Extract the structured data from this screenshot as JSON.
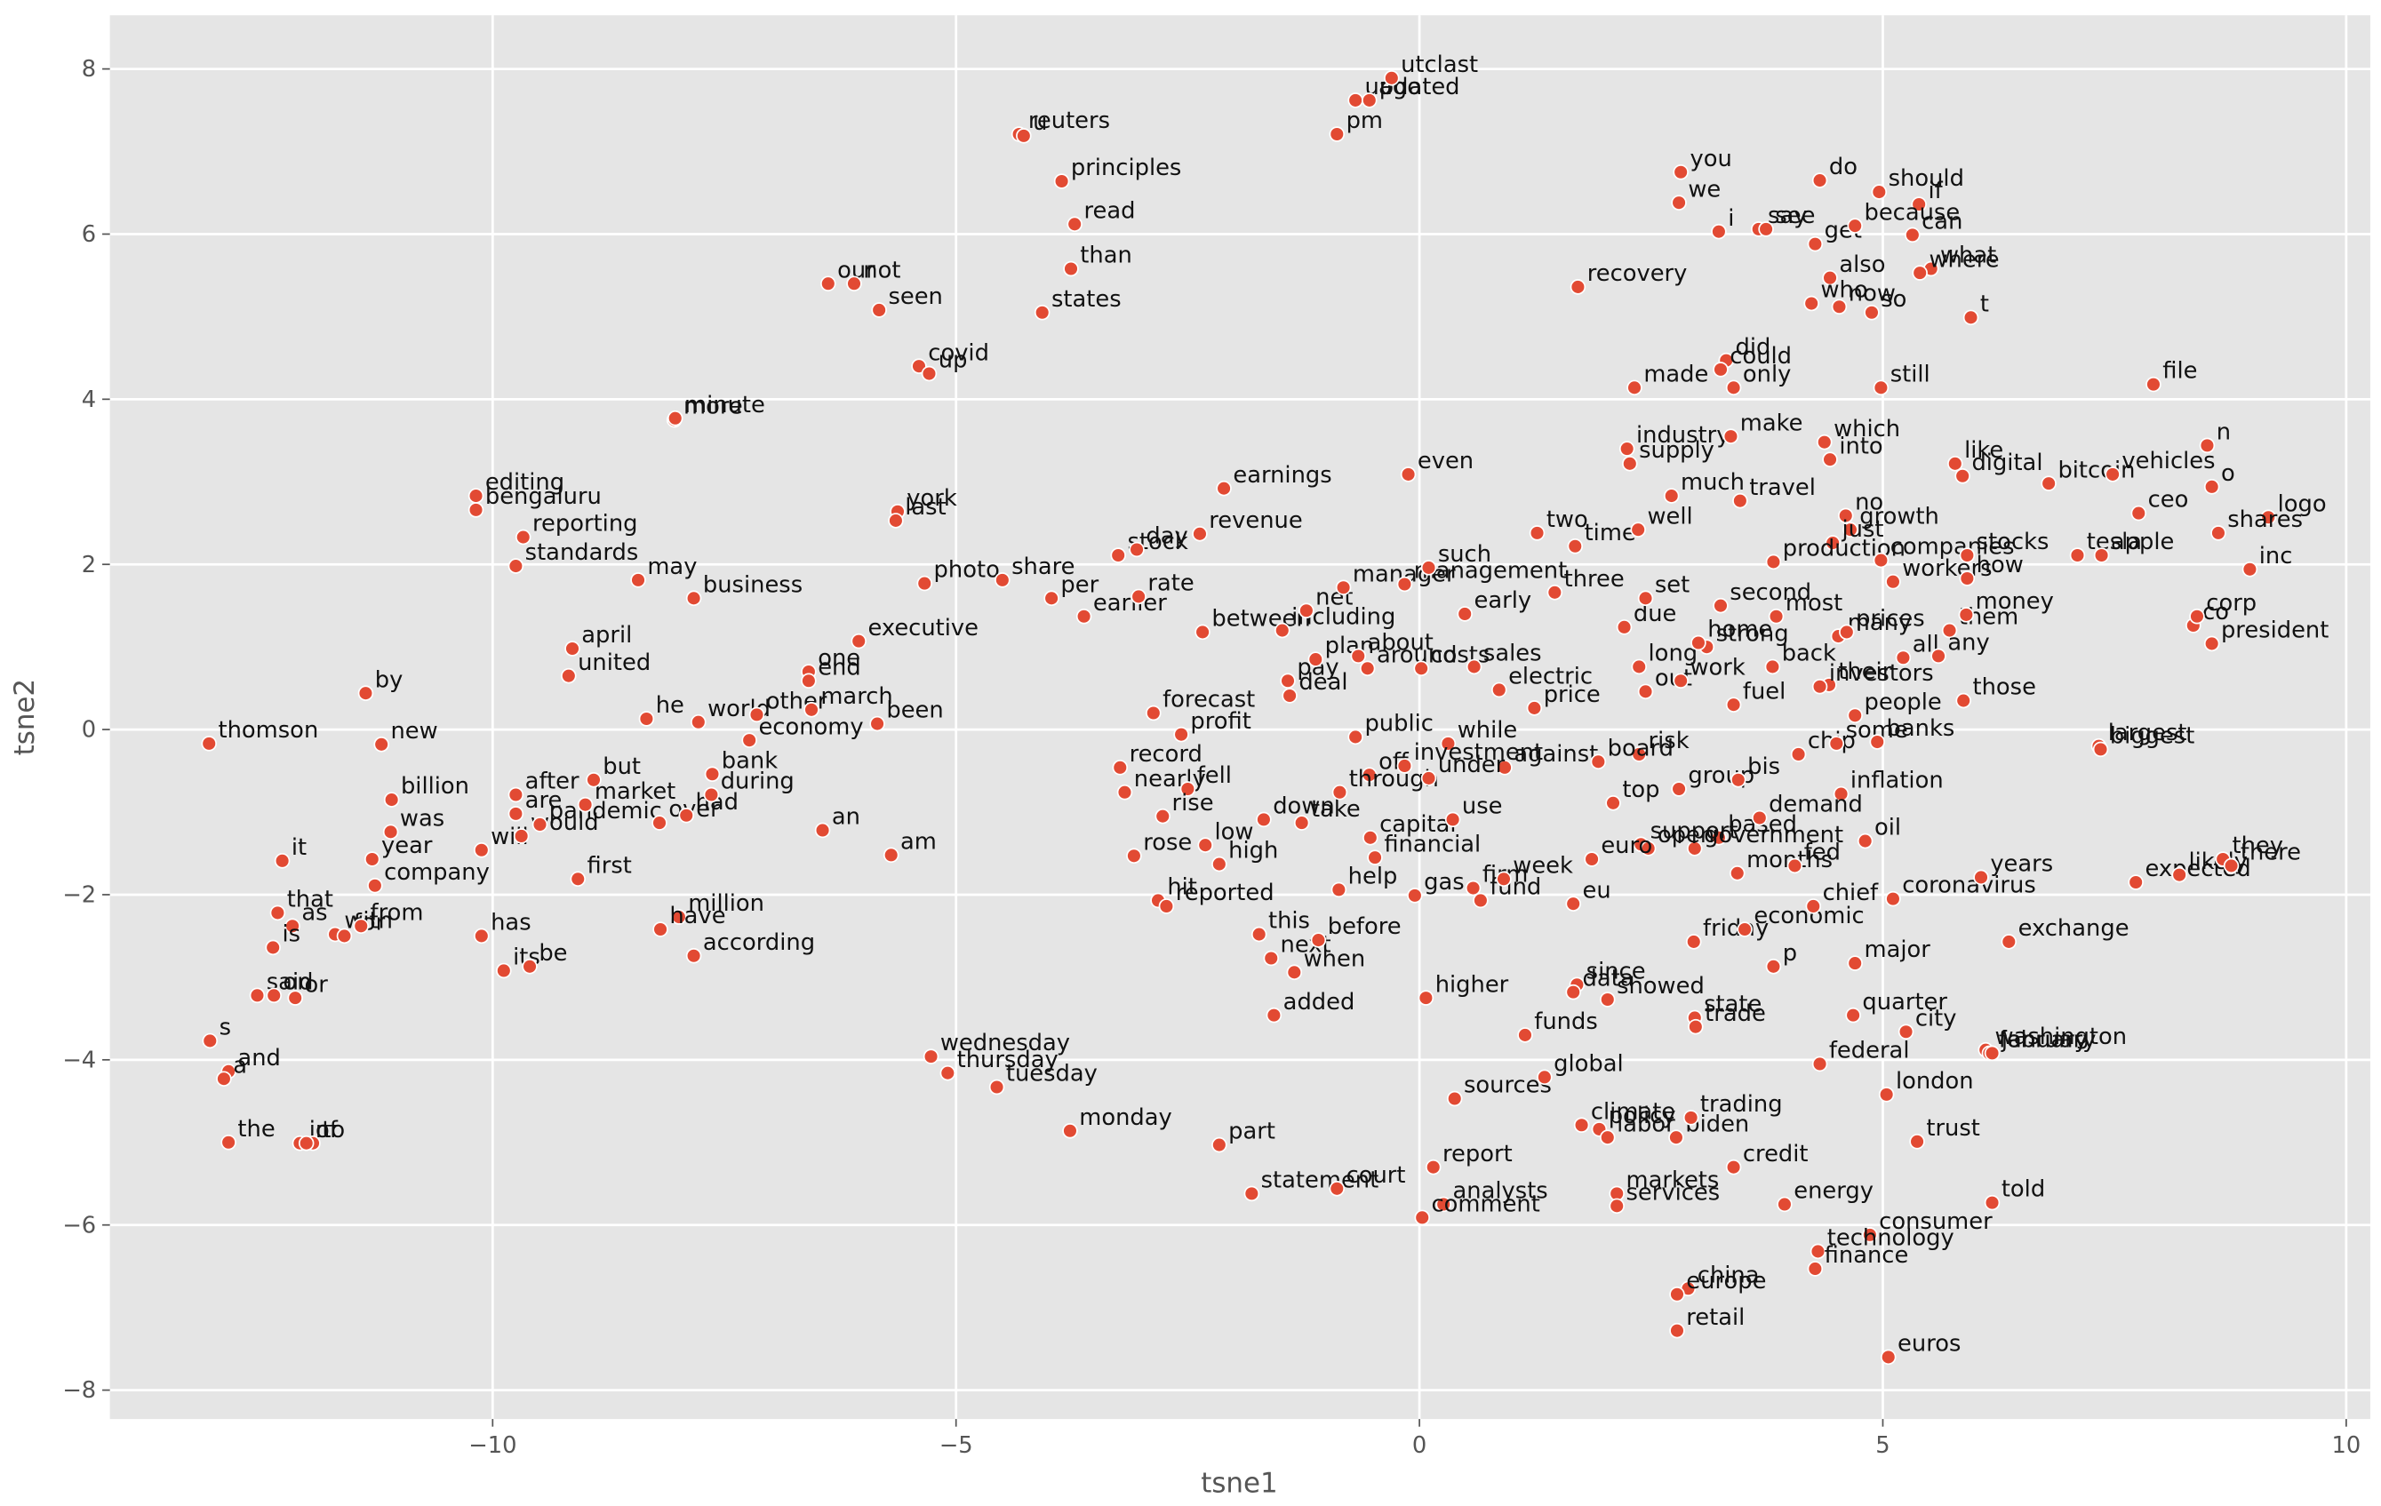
{
  "chart_data": {
    "type": "scatter",
    "xlabel": "tsne1",
    "ylabel": "tsne2",
    "color": "#e24a33",
    "grid": true,
    "xlim": [
      -14.13,
      10.26
    ],
    "ylim": [
      -8.35,
      8.65
    ],
    "xticks": [
      {
        "value": -10,
        "label": "−10"
      },
      {
        "value": -5,
        "label": "−5"
      },
      0,
      5,
      10
    ],
    "yticks": [
      {
        "value": -8,
        "label": "−8"
      },
      {
        "value": -6,
        "label": "−6"
      },
      {
        "value": -4,
        "label": "−4"
      },
      {
        "value": -2,
        "label": "−2"
      },
      0,
      2,
      4,
      6,
      8
    ],
    "labels": [
      "thomson",
      "it",
      "that",
      "as",
      "is",
      "with",
      "for",
      "from",
      "said",
      "on",
      "or",
      "s",
      "and",
      "a",
      "the",
      "in",
      "to",
      "of",
      "by",
      "new",
      "billion",
      "was",
      "year",
      "company",
      "will",
      "has",
      "its",
      "be",
      "after",
      "are",
      "would",
      "pandemic",
      "market",
      "first",
      "but",
      "over",
      "had",
      "during",
      "bank",
      "million",
      "have",
      "according",
      "he",
      "world",
      "other",
      "economy",
      "march",
      "been",
      "one",
      "end",
      "executive",
      "an",
      "am",
      "april",
      "united",
      "business",
      "may",
      "editing",
      "bengaluru",
      "reporting",
      "standards",
      "more",
      "minute",
      "our",
      "not",
      "seen",
      "covid",
      "up",
      "york",
      "last",
      "photo",
      "share",
      "per",
      "earlier",
      "states",
      "than",
      "read",
      "principles",
      "reuters",
      "u",
      "stock",
      "day",
      "revenue",
      "earnings",
      "rate",
      "forecast",
      "profit",
      "record",
      "nearly",
      "fell",
      "rise",
      "rose",
      "low",
      "high",
      "hit",
      "reported",
      "down",
      "take",
      "this",
      "next",
      "when",
      "before",
      "added",
      "help",
      "part",
      "monday",
      "wednesday",
      "thursday",
      "tuesday",
      "statement",
      "court",
      "between",
      "including",
      "net",
      "pay",
      "deal",
      "plan",
      "about",
      "around",
      "manager",
      "management",
      "such",
      "even",
      "early",
      "costs",
      "sales",
      "electric",
      "price",
      "public",
      "off",
      "through",
      "while",
      "investment",
      "against",
      "under",
      "capital",
      "financial",
      "use",
      "gas",
      "firm",
      "fund",
      "week",
      "higher",
      "sources",
      "report",
      "analysts",
      "comment",
      "global",
      "funds",
      "since",
      "data",
      "showed",
      "climate",
      "policy",
      "labor",
      "biden",
      "trading",
      "credit",
      "markets",
      "services",
      "energy",
      "consumer",
      "technology",
      "finance",
      "china",
      "europe",
      "retail",
      "euros",
      "told",
      "trust",
      "london",
      "federal",
      "city",
      "quarter",
      "washington",
      "february",
      "january",
      "state",
      "trade",
      "friday",
      "economic",
      "p",
      "major",
      "chief",
      "coronavirus",
      "exchange",
      "years",
      "oil",
      "inflation",
      "months",
      "fed",
      "based",
      "government",
      "demand",
      "support",
      "open",
      "euro",
      "eu",
      "group",
      "bis",
      "top",
      "risk",
      "board",
      "chip",
      "some",
      "banks",
      "people",
      "those",
      "fuel",
      "out",
      "work",
      "long",
      "strong",
      "home",
      "back",
      "their",
      "investors",
      "all",
      "due",
      "set",
      "second",
      "most",
      "many",
      "prices",
      "them",
      "any",
      "money",
      "three",
      "two",
      "time",
      "well",
      "much",
      "travel",
      "industry",
      "supply",
      "make",
      "made",
      "did",
      "could",
      "only",
      "recovery",
      "you",
      "we",
      "i",
      "say",
      "see",
      "do",
      "get",
      "also",
      "who",
      "now",
      "so",
      "should",
      "if",
      "because",
      "can",
      "what",
      "where",
      "t",
      "still",
      "file",
      "which",
      "into",
      "no",
      "growth",
      "just",
      "production",
      "companies",
      "workers",
      "how",
      "like",
      "digital",
      "bitcoin",
      "vehicles",
      "stocks",
      "tesla",
      "apple",
      "ceo",
      "n",
      "o",
      "logo",
      "shares",
      "inc",
      "co",
      "corp",
      "president",
      "largest",
      "biggest",
      "expected",
      "likely",
      "they",
      "there",
      "updated",
      "ago",
      "utclast",
      "pm"
    ],
    "x": [
      -13.06,
      -12.27,
      -12.32,
      -12.16,
      -12.37,
      -11.7,
      -11.6,
      -11.42,
      -12.54,
      -12.36,
      -12.13,
      -13.05,
      -12.85,
      -12.9,
      -12.85,
      -12.08,
      -11.94,
      -12.01,
      -11.37,
      -11.2,
      -11.09,
      -11.1,
      -11.3,
      -11.27,
      -10.12,
      -10.12,
      -9.88,
      -9.6,
      -9.75,
      -9.75,
      -9.69,
      -9.49,
      -9.0,
      -9.08,
      -8.91,
      -8.2,
      -7.91,
      -7.64,
      -7.63,
      -7.99,
      -8.19,
      -7.83,
      -8.34,
      -7.78,
      -7.15,
      -7.23,
      -6.56,
      -5.85,
      -6.59,
      -6.59,
      -6.05,
      -6.44,
      -5.7,
      -9.14,
      -9.18,
      -7.83,
      -8.43,
      -10.18,
      -10.18,
      -9.67,
      -9.75,
      -8.04,
      -8.03,
      -6.38,
      -6.1,
      -5.83,
      -5.4,
      -5.29,
      -5.63,
      -5.65,
      -5.34,
      -4.5,
      -3.97,
      -3.62,
      -4.07,
      -3.76,
      -3.72,
      -3.86,
      -4.32,
      -4.27,
      -3.25,
      -3.05,
      -2.37,
      -2.11,
      -3.03,
      -2.87,
      -2.57,
      -3.23,
      -3.18,
      -2.5,
      -2.77,
      -3.08,
      -2.31,
      -2.16,
      -2.82,
      -2.73,
      -1.68,
      -1.27,
      -1.73,
      -1.6,
      -1.35,
      -1.09,
      -1.57,
      -0.87,
      -2.16,
      -3.77,
      -5.27,
      -5.09,
      -4.56,
      -1.81,
      -0.89,
      -2.34,
      -1.48,
      -1.22,
      -1.42,
      -1.4,
      -1.12,
      -0.66,
      -0.56,
      -0.82,
      -0.16,
      0.1,
      -0.12,
      0.49,
      0.02,
      0.59,
      0.86,
      1.24,
      -0.69,
      -0.54,
      -0.86,
      0.31,
      -0.16,
      0.92,
      0.1,
      -0.53,
      -0.48,
      0.36,
      -0.05,
      0.58,
      0.66,
      0.91,
      0.07,
      0.38,
      0.15,
      0.26,
      0.03,
      1.35,
      1.14,
      1.7,
      1.66,
      2.03,
      1.75,
      1.94,
      2.03,
      2.77,
      2.93,
      3.39,
      2.13,
      2.13,
      3.94,
      4.86,
      4.3,
      4.27,
      2.9,
      2.78,
      2.78,
      5.06,
      6.18,
      5.37,
      5.04,
      4.32,
      5.25,
      4.68,
      6.11,
      6.15,
      6.18,
      2.97,
      2.98,
      2.96,
      3.51,
      3.82,
      4.7,
      4.25,
      5.11,
      6.36,
      6.06,
      4.81,
      4.55,
      3.43,
      4.05,
      3.23,
      2.97,
      3.67,
      2.39,
      2.47,
      1.86,
      1.66,
      2.8,
      3.44,
      2.09,
      2.37,
      1.93,
      4.09,
      4.5,
      4.94,
      4.7,
      5.87,
      3.39,
      2.44,
      2.82,
      2.37,
      3.1,
      3.01,
      3.81,
      4.42,
      4.32,
      5.22,
      2.21,
      2.44,
      3.25,
      3.85,
      4.52,
      4.61,
      5.72,
      5.6,
      5.9,
      1.46,
      1.27,
      1.68,
      2.36,
      2.72,
      3.46,
      2.24,
      2.27,
      3.36,
      2.32,
      3.31,
      3.25,
      3.39,
      1.71,
      2.82,
      2.8,
      3.23,
      3.66,
      3.74,
      4.32,
      4.27,
      4.43,
      4.23,
      4.53,
      4.88,
      4.96,
      5.39,
      4.7,
      5.32,
      5.52,
      5.4,
      5.95,
      4.98,
      7.92,
      4.37,
      4.43,
      4.6,
      4.65,
      4.46,
      3.82,
      4.98,
      5.11,
      5.91,
      5.78,
      5.86,
      6.79,
      7.48,
      5.91,
      7.1,
      7.36,
      7.76,
      8.5,
      8.55,
      9.16,
      8.62,
      8.96,
      8.35,
      8.39,
      8.55,
      7.33,
      7.35,
      7.73,
      8.2,
      8.67,
      8.76,
      -0.69,
      -0.54,
      -0.3,
      -0.89
    ],
    "values": [
      -0.17,
      -1.59,
      -2.22,
      -2.38,
      -2.64,
      -2.48,
      -2.5,
      -2.38,
      -3.22,
      -3.22,
      -3.25,
      -3.77,
      -4.14,
      -4.23,
      -5.0,
      -5.01,
      -5.01,
      -5.01,
      0.44,
      -0.18,
      -0.85,
      -1.24,
      -1.57,
      -1.89,
      -1.46,
      -2.5,
      -2.92,
      -2.87,
      -0.79,
      -1.02,
      -1.29,
      -1.15,
      -0.91,
      -1.81,
      -0.61,
      -1.13,
      -1.04,
      -0.79,
      -0.54,
      -2.27,
      -2.42,
      -2.74,
      0.13,
      0.09,
      0.18,
      -0.13,
      0.24,
      0.07,
      0.7,
      0.59,
      1.07,
      -1.22,
      -1.52,
      0.98,
      0.65,
      1.59,
      1.81,
      2.83,
      2.66,
      2.33,
      1.98,
      3.75,
      3.77,
      5.4,
      5.4,
      5.08,
      4.4,
      4.31,
      2.64,
      2.53,
      1.77,
      1.81,
      1.59,
      1.37,
      5.05,
      5.58,
      6.12,
      6.64,
      7.21,
      7.19,
      2.11,
      2.18,
      2.37,
      2.92,
      1.61,
      0.2,
      -0.06,
      -0.46,
      -0.76,
      -0.72,
      -1.05,
      -1.53,
      -1.4,
      -1.63,
      -2.07,
      -2.14,
      -1.09,
      -1.13,
      -2.48,
      -2.77,
      -2.94,
      -2.55,
      -3.46,
      -1.94,
      -5.03,
      -4.86,
      -3.96,
      -4.16,
      -4.33,
      -5.62,
      -5.56,
      1.18,
      1.2,
      1.44,
      0.59,
      0.41,
      0.85,
      0.89,
      0.74,
      1.72,
      1.76,
      1.96,
      3.09,
      1.4,
      0.74,
      0.76,
      0.48,
      0.26,
      -0.09,
      -0.55,
      -0.76,
      -0.17,
      -0.44,
      -0.46,
      -0.59,
      -1.31,
      -1.55,
      -1.09,
      -2.01,
      -1.92,
      -2.07,
      -1.81,
      -3.25,
      -4.47,
      -5.3,
      -5.75,
      -5.91,
      -4.21,
      -3.7,
      -3.09,
      -3.18,
      -3.27,
      -4.79,
      -4.84,
      -4.94,
      -4.94,
      -4.7,
      -5.3,
      -5.62,
      -5.77,
      -5.75,
      -6.12,
      -6.32,
      -6.53,
      -6.77,
      -6.84,
      -7.28,
      -7.6,
      -5.73,
      -4.99,
      -4.42,
      -4.05,
      -3.66,
      -3.46,
      -3.88,
      -3.92,
      -3.92,
      -3.49,
      -3.6,
      -2.57,
      -2.42,
      -2.87,
      -2.83,
      -2.14,
      -2.05,
      -2.57,
      -1.79,
      -1.35,
      -0.78,
      -1.74,
      -1.65,
      -1.31,
      -1.44,
      -1.07,
      -1.39,
      -1.44,
      -1.57,
      -2.11,
      -0.72,
      -0.61,
      -0.89,
      -0.3,
      -0.39,
      -0.3,
      -0.17,
      -0.15,
      0.17,
      0.35,
      0.3,
      0.46,
      0.59,
      0.76,
      1.0,
      1.05,
      0.76,
      0.54,
      0.52,
      0.87,
      1.24,
      1.59,
      1.5,
      1.37,
      1.13,
      1.18,
      1.2,
      0.89,
      1.39,
      1.66,
      2.38,
      2.22,
      2.42,
      2.83,
      2.77,
      3.4,
      3.22,
      3.55,
      4.14,
      4.47,
      4.36,
      4.14,
      5.36,
      6.75,
      6.38,
      6.03,
      6.06,
      6.06,
      6.65,
      5.88,
      5.47,
      5.16,
      5.12,
      5.05,
      6.51,
      6.36,
      6.1,
      5.99,
      5.58,
      5.53,
      4.99,
      4.14,
      4.18,
      3.48,
      3.27,
      2.59,
      2.42,
      2.26,
      2.03,
      2.05,
      1.79,
      1.83,
      3.22,
      3.07,
      2.98,
      3.09,
      2.11,
      2.11,
      2.11,
      2.62,
      3.44,
      2.94,
      2.57,
      2.38,
      1.94,
      1.26,
      1.37,
      1.04,
      -0.2,
      -0.24,
      -1.85,
      -1.76,
      -1.57,
      -1.65,
      7.62,
      7.62,
      7.89,
      7.21
    ]
  }
}
